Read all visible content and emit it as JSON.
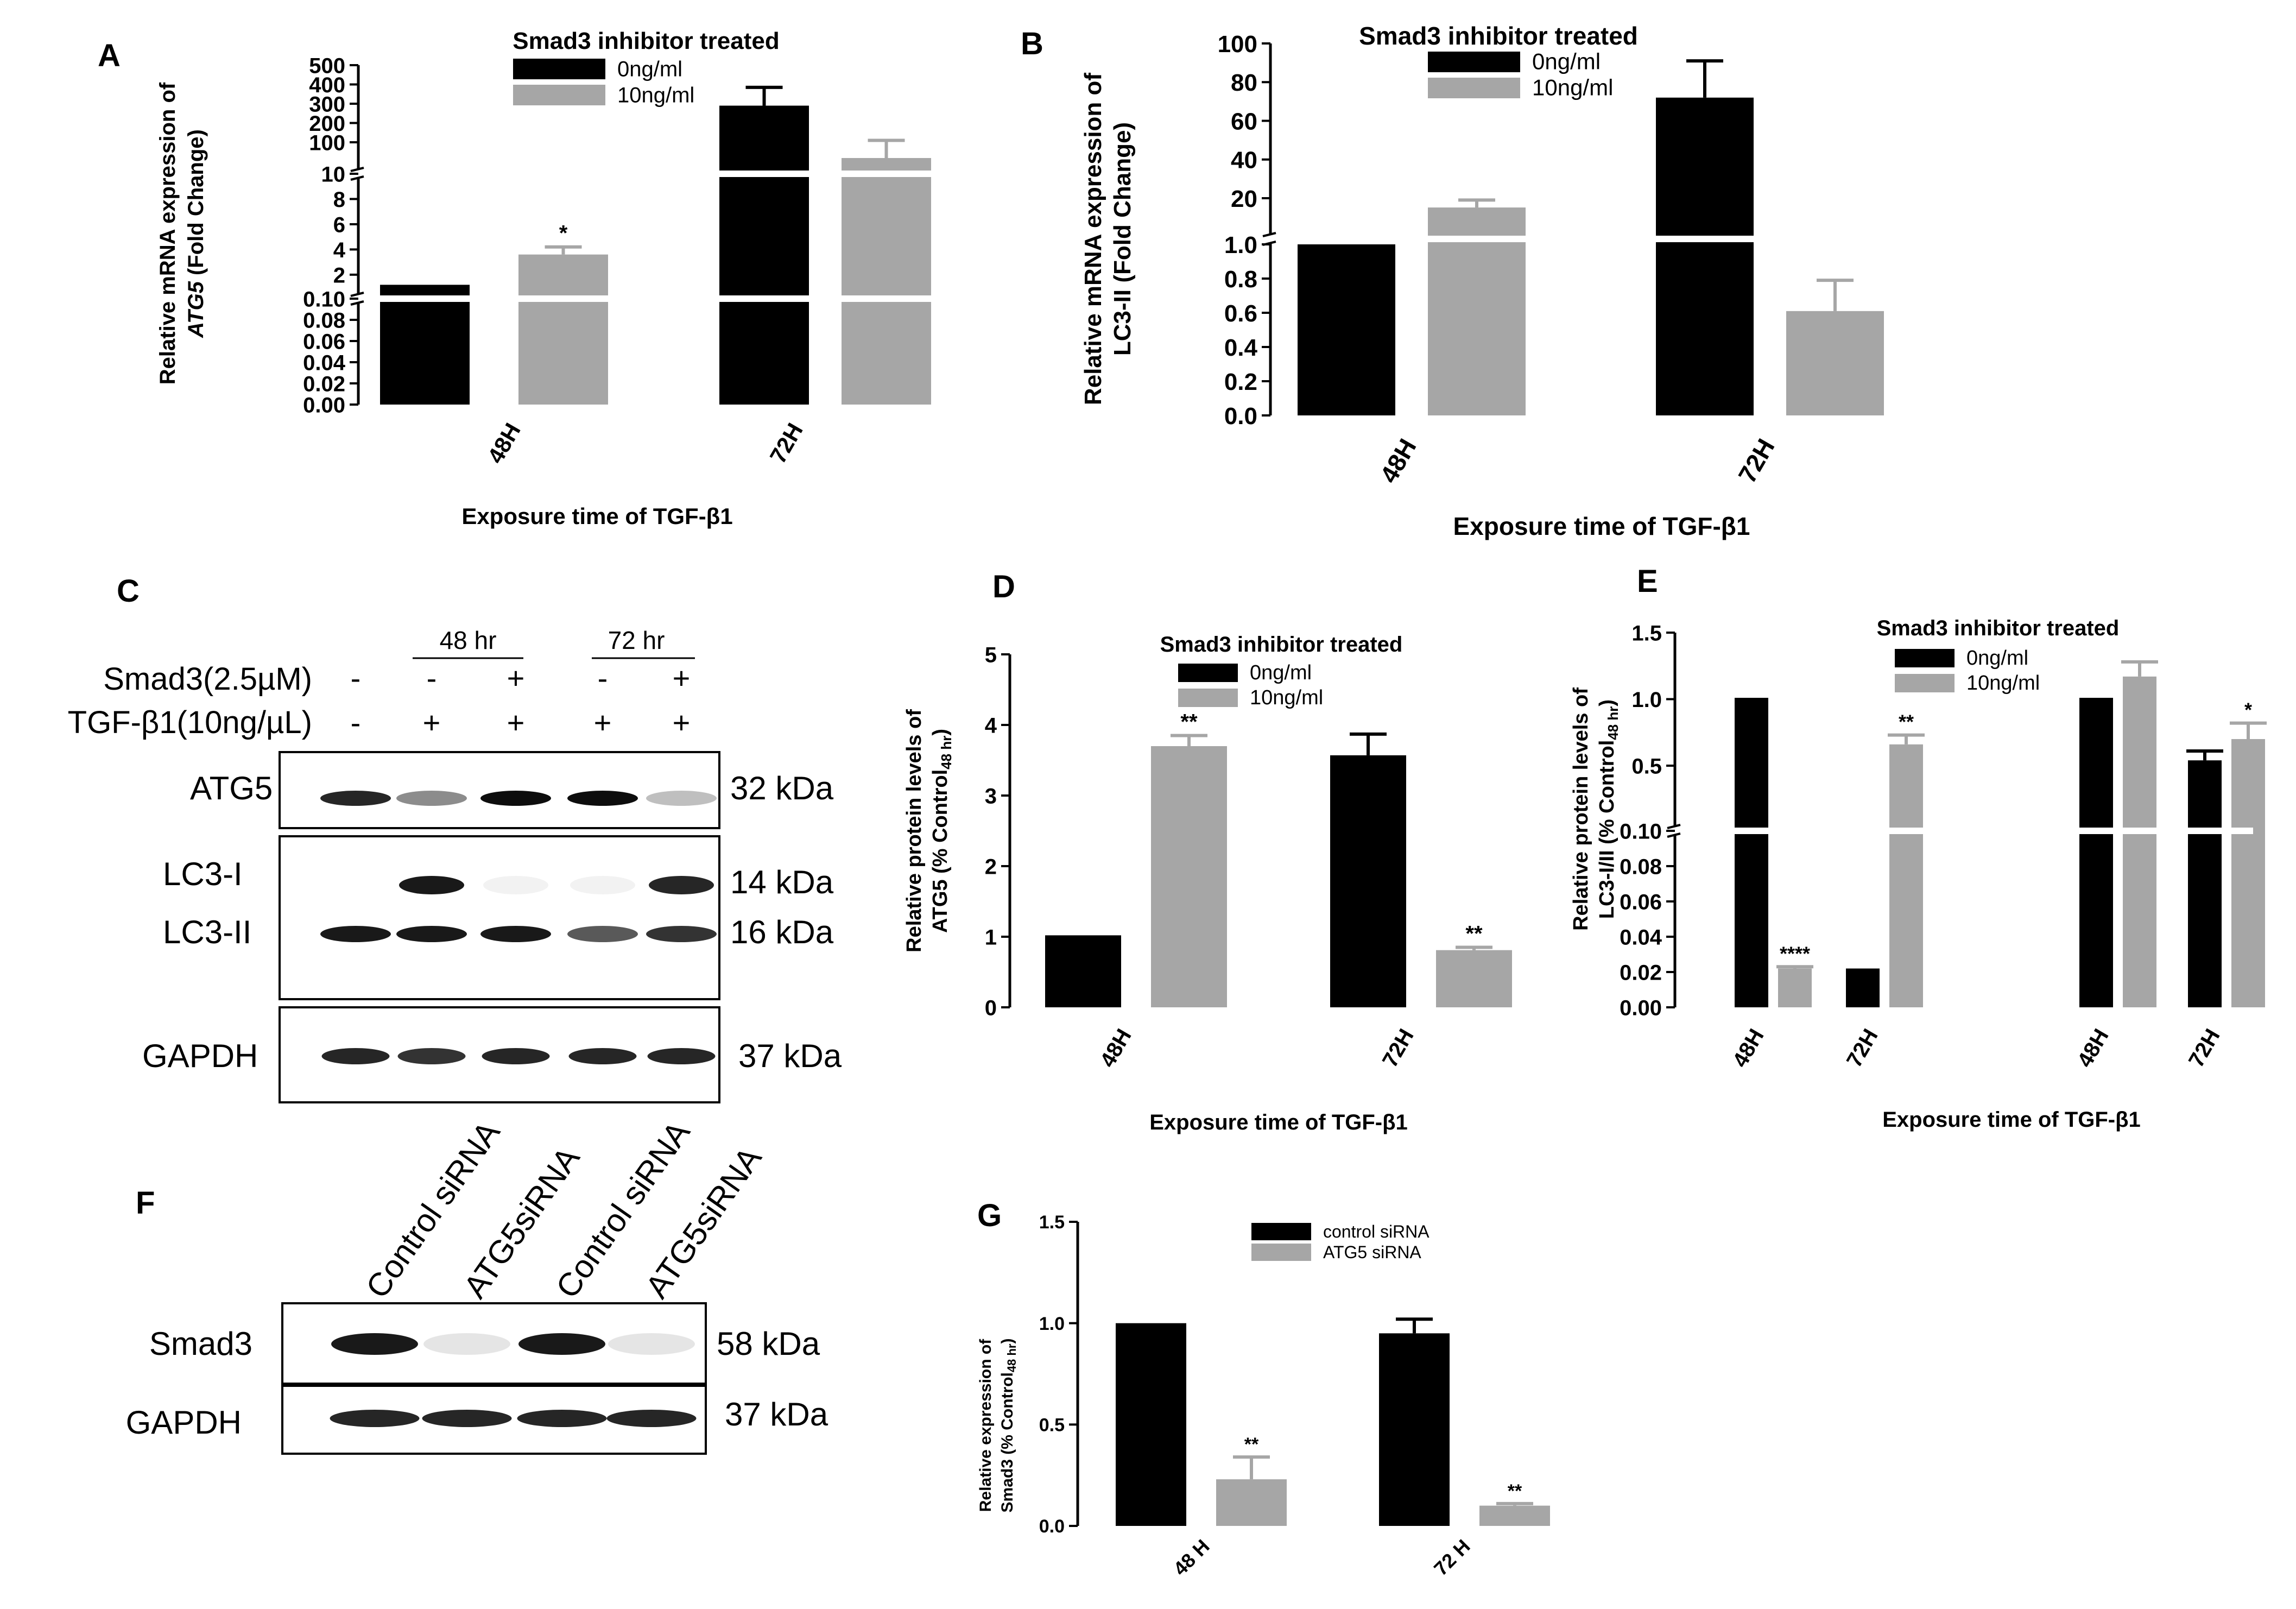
{
  "panels": {
    "A": {
      "letter": "A",
      "legend_title": "Smad3 inhibitor treated",
      "ylabel1": "Relative mRNA expression of",
      "ylabel2a": "ATG5",
      "ylabel2b": " (Fold Change)",
      "xlabel": "Exposure time of TGF-β1"
    },
    "B": {
      "letter": "B",
      "legend_title": "Smad3 inhibitor treated",
      "ylabel1": "Relative mRNA expression of",
      "ylabel2": "LC3-II (Fold Change)",
      "xlabel": "Exposure time of TGF-β1"
    },
    "C": {
      "letter": "C",
      "time_48": "48 hr",
      "time_72": "72 hr",
      "row1_label": "Smad3(2.5µM)",
      "row2_label": "TGF-β1(10ng/µL)",
      "row1_signs": [
        "-",
        "-",
        "+",
        "-",
        "+"
      ],
      "row2_signs": [
        "-",
        "+",
        "+",
        "+",
        "+"
      ],
      "bands": [
        "ATG5",
        "LC3-I",
        "LC3-II",
        "GAPDH"
      ],
      "kda": [
        "32 kDa",
        "14 kDa",
        "16 kDa",
        "37 kDa"
      ]
    },
    "D": {
      "letter": "D",
      "legend_title": "Smad3 inhibitor treated",
      "ylabel1": "Relative protein levels of",
      "ylabel2": "ATG5 (% Control",
      "ylabel_sub": "48 hr",
      "ylabel_end": ")",
      "xlabel": "Exposure time of TGF-β1"
    },
    "E": {
      "letter": "E",
      "legend_title": "Smad3 inhibitor treated",
      "ylabel1": "Relative protein levels of",
      "ylabel2": "LC3-I/II (% Control",
      "ylabel_sub": "48 hr",
      "ylabel_end": ")",
      "xlabel": "Exposure time of TGF-β1"
    },
    "F": {
      "letter": "F",
      "lanes": [
        "Control siRNA",
        "ATG5siRNA",
        "Control siRNA",
        "ATG5siRNA"
      ],
      "bands": [
        "Smad3",
        "GAPDH"
      ],
      "kda": [
        "58 kDa",
        "37 kDa"
      ]
    },
    "G": {
      "letter": "G",
      "ylabel1": "Relative expression of",
      "ylabel2": "Smad3 (% Control",
      "ylabel_sub": "48 hr",
      "ylabel_end": ")"
    }
  },
  "colors": {
    "black_series": "#000000",
    "grey_series": "#a6a6a6",
    "axis": "#000000"
  },
  "chart_data": [
    {
      "panel": "A",
      "type": "bar",
      "title": "Smad3 inhibitor treated",
      "xlabel": "Exposure time of TGF-β1",
      "ylabel": "Relative mRNA expression of ATG5 (Fold Change)",
      "categories": [
        "48H",
        "72H"
      ],
      "series": [
        {
          "name": "0ng/ml",
          "values": [
            1.2,
            290
          ],
          "errors": [
            0,
            95
          ]
        },
        {
          "name": "10ng/ml",
          "values": [
            3.6,
            55
          ],
          "errors": [
            0.6,
            55
          ]
        }
      ],
      "annotations": [
        {
          "category": "48H",
          "series": "10ng/ml",
          "text": "*"
        }
      ],
      "y_axis_segments": [
        {
          "range": [
            0,
            0.1
          ],
          "ticks": [
            "0.00",
            "0.02",
            "0.04",
            "0.06",
            "0.08",
            "0.10"
          ]
        },
        {
          "range": [
            0,
            10
          ],
          "ticks": [
            "2",
            "4",
            "6",
            "8",
            "10"
          ]
        },
        {
          "range": [
            10,
            500
          ],
          "ticks": [
            "100",
            "200",
            "300",
            "400",
            "500"
          ]
        }
      ],
      "legend_placement": "top-center",
      "grid": false
    },
    {
      "panel": "B",
      "type": "bar",
      "title": "Smad3 inhibitor treated",
      "xlabel": "Exposure time of TGF-β1",
      "ylabel": "Relative mRNA expression of LC3-II (Fold Change)",
      "categories": [
        "48H",
        "72H"
      ],
      "series": [
        {
          "name": "0ng/ml",
          "values": [
            1.0,
            72
          ],
          "errors": [
            0,
            19
          ]
        },
        {
          "name": "10ng/ml",
          "values": [
            15,
            0.61
          ],
          "errors": [
            4,
            0.18
          ]
        }
      ],
      "y_axis_segments": [
        {
          "range": [
            0,
            1
          ],
          "ticks": [
            "0.0",
            "0.2",
            "0.4",
            "0.6",
            "0.8",
            "1.0"
          ]
        },
        {
          "range": [
            1,
            100
          ],
          "ticks": [
            "20",
            "40",
            "60",
            "80",
            "100"
          ]
        }
      ],
      "legend_placement": "top-center",
      "grid": false
    },
    {
      "panel": "D",
      "type": "bar",
      "title": "Smad3 inhibitor treated",
      "xlabel": "Exposure time of TGF-β1",
      "ylabel": "Relative protein levels of ATG5 (% Control48 hr)",
      "categories": [
        "48H",
        "72H"
      ],
      "series": [
        {
          "name": "0ng/ml",
          "values": [
            1.02,
            3.57
          ],
          "errors": [
            0,
            0.3
          ]
        },
        {
          "name": "10ng/ml",
          "values": [
            3.7,
            0.81
          ],
          "errors": [
            0.15,
            0.04
          ]
        }
      ],
      "annotations": [
        {
          "category": "48H",
          "series": "10ng/ml",
          "text": "**"
        },
        {
          "category": "72H",
          "series": "10ng/ml",
          "text": "**"
        }
      ],
      "ylim": [
        0,
        5
      ],
      "yticks": [
        "0",
        "1",
        "2",
        "3",
        "4",
        "5"
      ],
      "legend_placement": "top-center",
      "grid": false
    },
    {
      "panel": "E",
      "type": "bar",
      "title": "Smad3 inhibitor treated",
      "xlabel": "Exposure time of TGF-β1",
      "ylabel": "Relative protein levels of LC3-I/II (% Control48 hr)",
      "categories": [
        "48H",
        "72H",
        "48H",
        "72H"
      ],
      "series": [
        {
          "name": "0ng/ml",
          "values": [
            1.01,
            0.022,
            1.01,
            0.54
          ],
          "errors": [
            0,
            0,
            0,
            0.07
          ]
        },
        {
          "name": "10ng/ml",
          "values": [
            0.022,
            0.66,
            1.17,
            0.7
          ],
          "errors": [
            0.001,
            0.07,
            0.11,
            0.12
          ]
        }
      ],
      "annotations": [
        {
          "index": 0,
          "series": "10ng/ml",
          "text": "****"
        },
        {
          "index": 1,
          "series": "10ng/ml",
          "text": "**"
        },
        {
          "index": 3,
          "series": "10ng/ml",
          "text": "*"
        }
      ],
      "y_axis_segments": [
        {
          "range": [
            0,
            0.1
          ],
          "ticks": [
            "0.00",
            "0.02",
            "0.04",
            "0.06",
            "0.08",
            "0.10"
          ]
        },
        {
          "range": [
            0.1,
            1.5
          ],
          "ticks": [
            "0.5",
            "1.0",
            "1.5"
          ]
        }
      ],
      "legend_placement": "top-center",
      "grid": false
    },
    {
      "panel": "G",
      "type": "bar",
      "ylabel": "Relative expression of Smad3 (% Control48 hr)",
      "categories": [
        "48 H",
        "72 H"
      ],
      "series": [
        {
          "name": "control siRNA",
          "values": [
            1.0,
            0.95
          ],
          "errors": [
            0,
            0.07
          ]
        },
        {
          "name": "ATG5 siRNA",
          "values": [
            0.23,
            0.1
          ],
          "errors": [
            0.11,
            0.01
          ]
        }
      ],
      "annotations": [
        {
          "category": "48 H",
          "series": "ATG5 siRNA",
          "text": "**"
        },
        {
          "category": "72 H",
          "series": "ATG5 siRNA",
          "text": "**"
        }
      ],
      "ylim": [
        0,
        1.5
      ],
      "yticks": [
        "0.0",
        "0.5",
        "1.0",
        "1.5"
      ],
      "legend_placement": "top-center",
      "grid": false
    }
  ]
}
